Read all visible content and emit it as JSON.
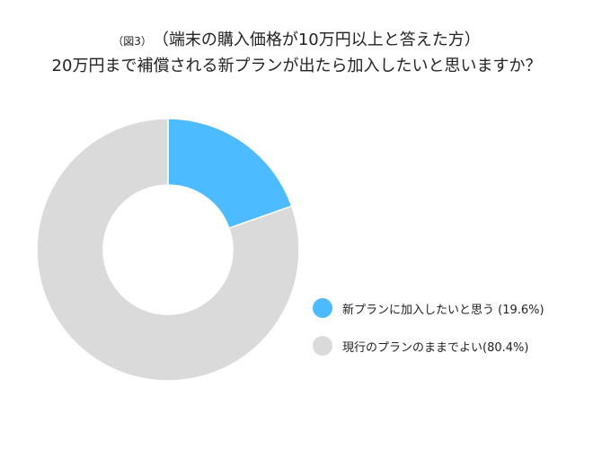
{
  "title": {
    "figure_label": "（図3）",
    "line1": "（端末の購入価格が10万円以上と答えた方）",
    "line2": "20万円まで補償される新プランが出たら加入したいと思いますか？"
  },
  "chart_data": {
    "type": "pie",
    "variant": "donut",
    "title": "20万円まで補償される新プランが出たら加入したいと思いますか？",
    "categories": [
      "新プランに加入したいと思う",
      "現行のプランのままでよい"
    ],
    "values": [
      19.6,
      80.4
    ],
    "value_unit": "%",
    "colors": [
      "#4DBBFF",
      "#DADADA"
    ],
    "legend_position": "right",
    "legend_labels": [
      "新プランに加入したいと思う (19.6%)",
      "現行のプランのままでよい(80.4%)"
    ]
  }
}
